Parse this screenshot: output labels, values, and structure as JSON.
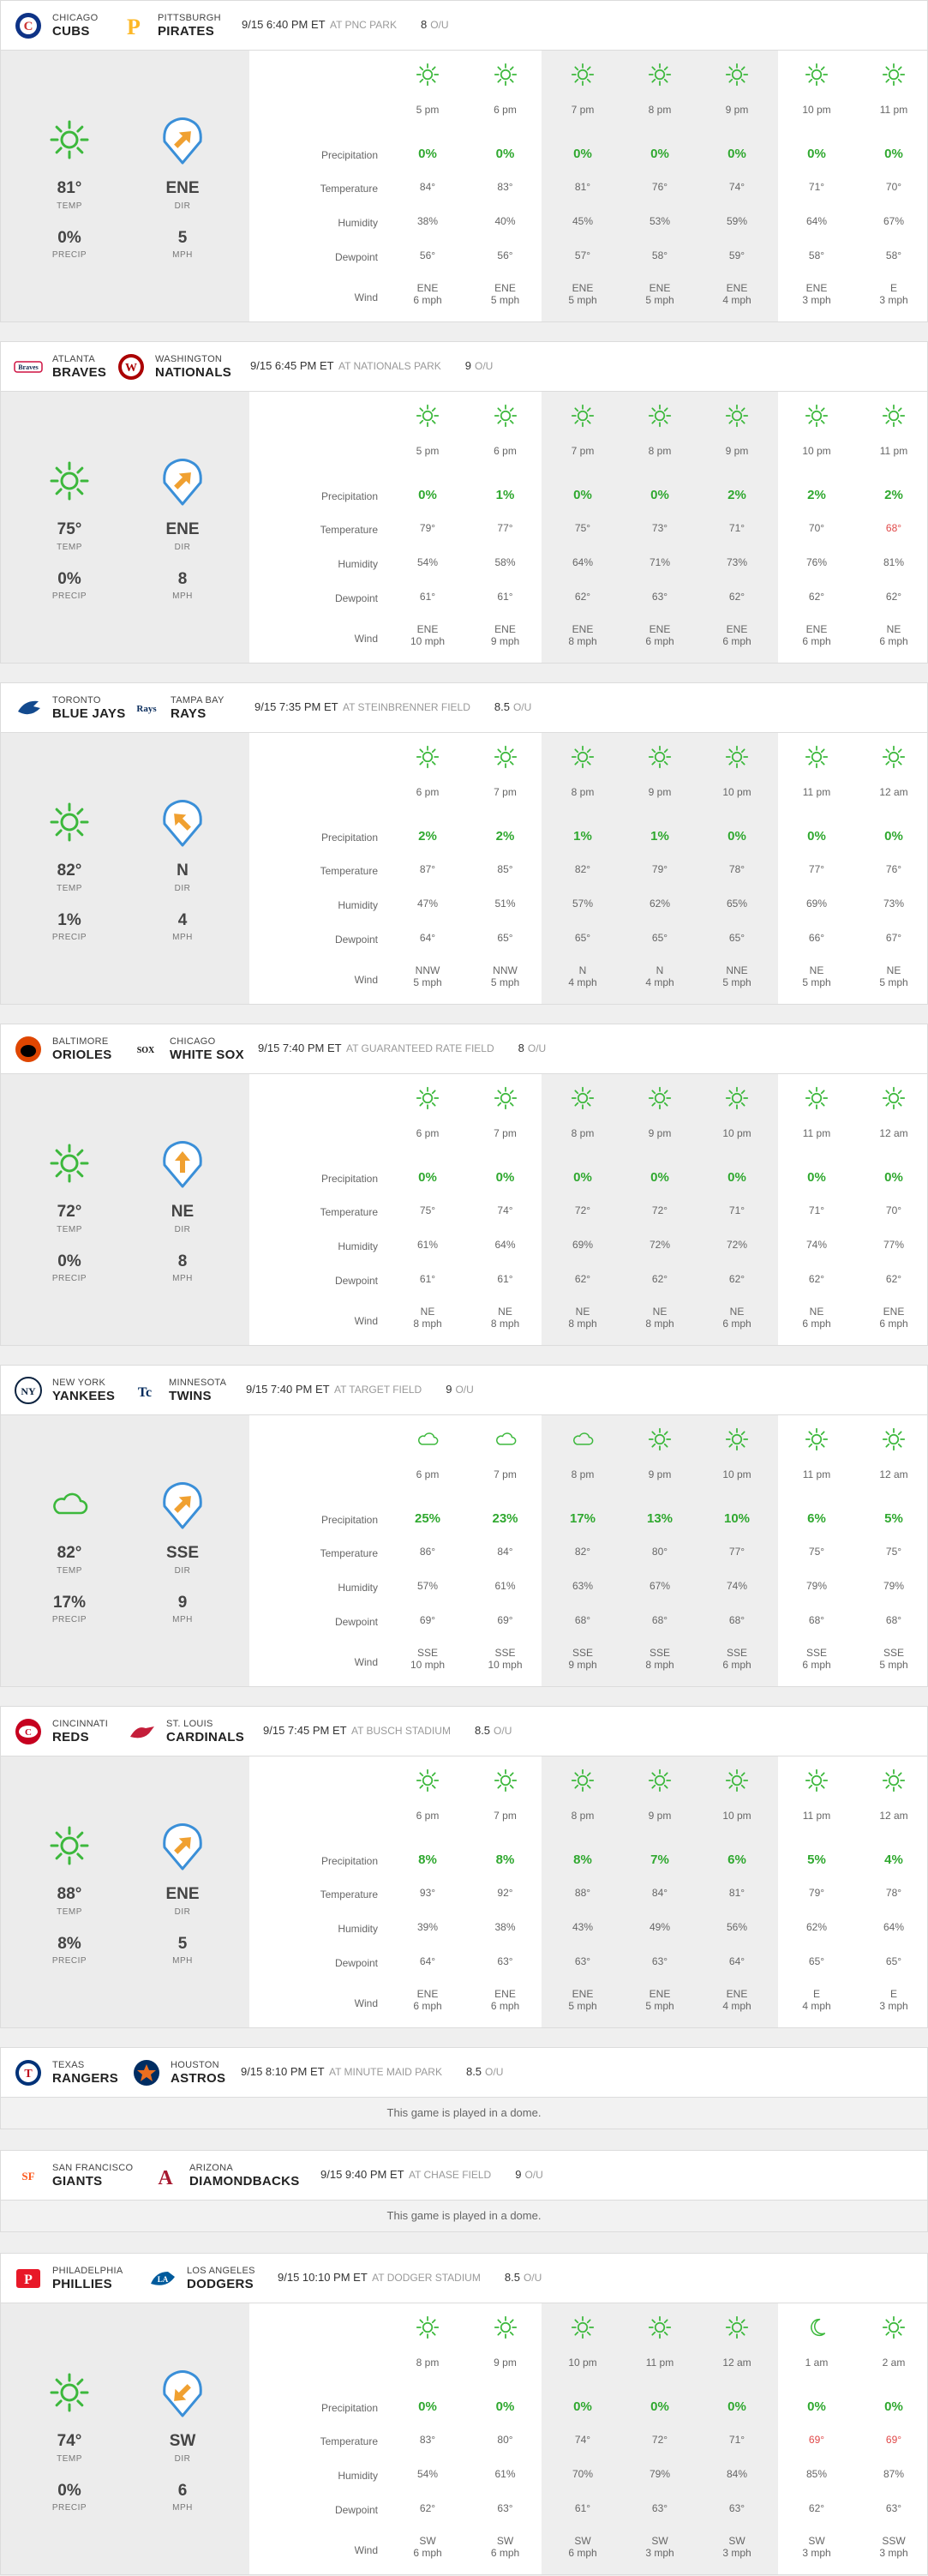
{
  "row_labels": {
    "precipitation": "Precipitation",
    "temperature": "Temperature",
    "humidity": "Humidity",
    "dewpoint": "Dewpoint",
    "wind": "Wind"
  },
  "summary_labels": {
    "temp": "TEMP",
    "dir": "DIR",
    "precip": "PRECIP",
    "mph": "MPH"
  },
  "ou_label": "O/U",
  "dome_message": "This game is played in a dome.",
  "colors": {
    "precip_green": "#2fa82f",
    "hot_red": "#e04848",
    "sun": "#3cb83c",
    "cloud": "#3cb83c",
    "arrow": "#f0a030",
    "field_outline": "#3a8fd8"
  },
  "games": [
    {
      "id": "cubs-pirates",
      "away": {
        "city": "CHICAGO",
        "nick": "CUBS",
        "logo": "cubs-logo"
      },
      "home": {
        "city": "PITTSBURGH",
        "nick": "PIRATES",
        "logo": "pirates-logo"
      },
      "datetime": "9/15 6:40 PM ET",
      "venue": "AT PNC PARK",
      "ou": "8",
      "summary": {
        "icon": "sun-icon",
        "temp": "81°",
        "dir": "ENE",
        "precip": "0%",
        "mph": "5",
        "arrow_angle": 225
      },
      "hours": [
        {
          "time": "5 pm",
          "icon": "sun-icon",
          "precip": "0%",
          "temp": "84°",
          "hum": "38%",
          "dew": "56°",
          "wind_dir": "ENE",
          "wind_speed": "6 mph"
        },
        {
          "time": "6 pm",
          "icon": "sun-icon",
          "precip": "0%",
          "temp": "83°",
          "hum": "40%",
          "dew": "56°",
          "wind_dir": "ENE",
          "wind_speed": "5 mph"
        },
        {
          "time": "7 pm",
          "icon": "sun-icon",
          "precip": "0%",
          "temp": "81°",
          "hum": "45%",
          "dew": "57°",
          "wind_dir": "ENE",
          "wind_speed": "5 mph"
        },
        {
          "time": "8 pm",
          "icon": "sun-icon",
          "precip": "0%",
          "temp": "76°",
          "hum": "53%",
          "dew": "58°",
          "wind_dir": "ENE",
          "wind_speed": "5 mph"
        },
        {
          "time": "9 pm",
          "icon": "sun-icon",
          "precip": "0%",
          "temp": "74°",
          "hum": "59%",
          "dew": "59°",
          "wind_dir": "ENE",
          "wind_speed": "4 mph"
        },
        {
          "time": "10 pm",
          "icon": "sun-icon",
          "precip": "0%",
          "temp": "71°",
          "hum": "64%",
          "dew": "58°",
          "wind_dir": "ENE",
          "wind_speed": "3 mph"
        },
        {
          "time": "11 pm",
          "icon": "sun-icon",
          "precip": "0%",
          "temp": "70°",
          "hum": "67%",
          "dew": "58°",
          "wind_dir": "E",
          "wind_speed": "3 mph"
        }
      ]
    },
    {
      "id": "braves-nationals",
      "away": {
        "city": "ATLANTA",
        "nick": "BRAVES",
        "logo": "braves-logo"
      },
      "home": {
        "city": "WASHINGTON",
        "nick": "NATIONALS",
        "logo": "nationals-logo"
      },
      "datetime": "9/15 6:45 PM ET",
      "venue": "AT NATIONALS PARK",
      "ou": "9",
      "summary": {
        "icon": "sun-icon",
        "temp": "75°",
        "dir": "ENE",
        "precip": "0%",
        "mph": "8",
        "arrow_angle": 225
      },
      "hours": [
        {
          "time": "5 pm",
          "icon": "sun-icon",
          "precip": "0%",
          "temp": "79°",
          "hum": "54%",
          "dew": "61°",
          "wind_dir": "ENE",
          "wind_speed": "10 mph"
        },
        {
          "time": "6 pm",
          "icon": "sun-icon",
          "precip": "1%",
          "temp": "77°",
          "hum": "58%",
          "dew": "61°",
          "wind_dir": "ENE",
          "wind_speed": "9 mph"
        },
        {
          "time": "7 pm",
          "icon": "sun-icon",
          "precip": "0%",
          "temp": "75°",
          "hum": "64%",
          "dew": "62°",
          "wind_dir": "ENE",
          "wind_speed": "8 mph"
        },
        {
          "time": "8 pm",
          "icon": "sun-icon",
          "precip": "0%",
          "temp": "73°",
          "hum": "71%",
          "dew": "63°",
          "wind_dir": "ENE",
          "wind_speed": "6 mph"
        },
        {
          "time": "9 pm",
          "icon": "sun-icon",
          "precip": "2%",
          "temp": "71°",
          "hum": "73%",
          "dew": "62°",
          "wind_dir": "ENE",
          "wind_speed": "6 mph"
        },
        {
          "time": "10 pm",
          "icon": "sun-icon",
          "precip": "2%",
          "temp": "70°",
          "hum": "76%",
          "dew": "62°",
          "wind_dir": "ENE",
          "wind_speed": "6 mph"
        },
        {
          "time": "11 pm",
          "icon": "sun-icon",
          "precip": "2%",
          "temp": "68°",
          "hot": true,
          "hum": "81%",
          "dew": "62°",
          "wind_dir": "NE",
          "wind_speed": "6 mph"
        }
      ]
    },
    {
      "id": "bluejays-rays",
      "away": {
        "city": "TORONTO",
        "nick": "BLUE JAYS",
        "logo": "blue-jays-logo"
      },
      "home": {
        "city": "TAMPA BAY",
        "nick": "RAYS",
        "logo": "rays-logo"
      },
      "datetime": "9/15 7:35 PM ET",
      "venue": "AT STEINBRENNER FIELD",
      "ou": "8.5",
      "summary": {
        "icon": "sun-icon",
        "temp": "82°",
        "dir": "N",
        "precip": "1%",
        "mph": "4",
        "arrow_angle": 135
      },
      "hours": [
        {
          "time": "6 pm",
          "icon": "sun-icon",
          "precip": "2%",
          "temp": "87°",
          "hum": "47%",
          "dew": "64°",
          "wind_dir": "NNW",
          "wind_speed": "5 mph"
        },
        {
          "time": "7 pm",
          "icon": "sun-icon",
          "precip": "2%",
          "temp": "85°",
          "hum": "51%",
          "dew": "65°",
          "wind_dir": "NNW",
          "wind_speed": "5 mph"
        },
        {
          "time": "8 pm",
          "icon": "sun-icon",
          "precip": "1%",
          "temp": "82°",
          "hum": "57%",
          "dew": "65°",
          "wind_dir": "N",
          "wind_speed": "4 mph"
        },
        {
          "time": "9 pm",
          "icon": "sun-icon",
          "precip": "1%",
          "temp": "79°",
          "hum": "62%",
          "dew": "65°",
          "wind_dir": "N",
          "wind_speed": "4 mph"
        },
        {
          "time": "10 pm",
          "icon": "sun-icon",
          "precip": "0%",
          "temp": "78°",
          "hum": "65%",
          "dew": "65°",
          "wind_dir": "NNE",
          "wind_speed": "5 mph"
        },
        {
          "time": "11 pm",
          "icon": "sun-icon",
          "precip": "0%",
          "temp": "77°",
          "hum": "69%",
          "dew": "66°",
          "wind_dir": "NE",
          "wind_speed": "5 mph"
        },
        {
          "time": "12 am",
          "icon": "sun-icon",
          "precip": "0%",
          "temp": "76°",
          "hum": "73%",
          "dew": "67°",
          "wind_dir": "NE",
          "wind_speed": "5 mph"
        }
      ]
    },
    {
      "id": "orioles-whitesox",
      "away": {
        "city": "BALTIMORE",
        "nick": "ORIOLES",
        "logo": "orioles-logo"
      },
      "home": {
        "city": "CHICAGO",
        "nick": "WHITE SOX",
        "logo": "white-sox-logo"
      },
      "datetime": "9/15 7:40 PM ET",
      "venue": "AT GUARANTEED RATE FIELD",
      "ou": "8",
      "summary": {
        "icon": "sun-icon",
        "temp": "72°",
        "dir": "NE",
        "precip": "0%",
        "mph": "8",
        "arrow_angle": 180
      },
      "hours": [
        {
          "time": "6 pm",
          "icon": "sun-icon",
          "precip": "0%",
          "temp": "75°",
          "hum": "61%",
          "dew": "61°",
          "wind_dir": "NE",
          "wind_speed": "8 mph"
        },
        {
          "time": "7 pm",
          "icon": "sun-icon",
          "precip": "0%",
          "temp": "74°",
          "hum": "64%",
          "dew": "61°",
          "wind_dir": "NE",
          "wind_speed": "8 mph"
        },
        {
          "time": "8 pm",
          "icon": "sun-icon",
          "precip": "0%",
          "temp": "72°",
          "hum": "69%",
          "dew": "62°",
          "wind_dir": "NE",
          "wind_speed": "8 mph"
        },
        {
          "time": "9 pm",
          "icon": "sun-icon",
          "precip": "0%",
          "temp": "72°",
          "hum": "72%",
          "dew": "62°",
          "wind_dir": "NE",
          "wind_speed": "8 mph"
        },
        {
          "time": "10 pm",
          "icon": "sun-icon",
          "precip": "0%",
          "temp": "71°",
          "hum": "72%",
          "dew": "62°",
          "wind_dir": "NE",
          "wind_speed": "6 mph"
        },
        {
          "time": "11 pm",
          "icon": "sun-icon",
          "precip": "0%",
          "temp": "71°",
          "hum": "74%",
          "dew": "62°",
          "wind_dir": "NE",
          "wind_speed": "6 mph"
        },
        {
          "time": "12 am",
          "icon": "sun-icon",
          "precip": "0%",
          "temp": "70°",
          "hum": "77%",
          "dew": "62°",
          "wind_dir": "ENE",
          "wind_speed": "6 mph"
        }
      ]
    },
    {
      "id": "yankees-twins",
      "away": {
        "city": "NEW YORK",
        "nick": "YANKEES",
        "logo": "yankees-logo"
      },
      "home": {
        "city": "MINNESOTA",
        "nick": "TWINS",
        "logo": "twins-logo"
      },
      "datetime": "9/15 7:40 PM ET",
      "venue": "AT TARGET FIELD",
      "ou": "9",
      "summary": {
        "icon": "cloud-icon",
        "temp": "82°",
        "dir": "SSE",
        "precip": "17%",
        "mph": "9",
        "arrow_angle": 225
      },
      "hours": [
        {
          "time": "6 pm",
          "icon": "cloud-icon",
          "precip": "25%",
          "temp": "86°",
          "hum": "57%",
          "dew": "69°",
          "wind_dir": "SSE",
          "wind_speed": "10 mph"
        },
        {
          "time": "7 pm",
          "icon": "cloud-icon",
          "precip": "23%",
          "temp": "84°",
          "hum": "61%",
          "dew": "69°",
          "wind_dir": "SSE",
          "wind_speed": "10 mph"
        },
        {
          "time": "8 pm",
          "icon": "cloud-icon",
          "precip": "17%",
          "temp": "82°",
          "hum": "63%",
          "dew": "68°",
          "wind_dir": "SSE",
          "wind_speed": "9 mph"
        },
        {
          "time": "9 pm",
          "icon": "sun-icon",
          "precip": "13%",
          "temp": "80°",
          "hum": "67%",
          "dew": "68°",
          "wind_dir": "SSE",
          "wind_speed": "8 mph"
        },
        {
          "time": "10 pm",
          "icon": "sun-icon",
          "precip": "10%",
          "temp": "77°",
          "hum": "74%",
          "dew": "68°",
          "wind_dir": "SSE",
          "wind_speed": "6 mph"
        },
        {
          "time": "11 pm",
          "icon": "sun-icon",
          "precip": "6%",
          "temp": "75°",
          "hum": "79%",
          "dew": "68°",
          "wind_dir": "SSE",
          "wind_speed": "6 mph"
        },
        {
          "time": "12 am",
          "icon": "sun-icon",
          "precip": "5%",
          "temp": "75°",
          "hum": "79%",
          "dew": "68°",
          "wind_dir": "SSE",
          "wind_speed": "5 mph"
        }
      ]
    },
    {
      "id": "reds-cardinals",
      "away": {
        "city": "CINCINNATI",
        "nick": "REDS",
        "logo": "reds-logo"
      },
      "home": {
        "city": "ST. LOUIS",
        "nick": "CARDINALS",
        "logo": "cardinals-logo"
      },
      "datetime": "9/15 7:45 PM ET",
      "venue": "AT BUSCH STADIUM",
      "ou": "8.5",
      "summary": {
        "icon": "sun-icon",
        "temp": "88°",
        "dir": "ENE",
        "precip": "8%",
        "mph": "5",
        "arrow_angle": 225
      },
      "hours": [
        {
          "time": "6 pm",
          "icon": "sun-icon",
          "precip": "8%",
          "temp": "93°",
          "hum": "39%",
          "dew": "64°",
          "wind_dir": "ENE",
          "wind_speed": "6 mph"
        },
        {
          "time": "7 pm",
          "icon": "sun-icon",
          "precip": "8%",
          "temp": "92°",
          "hum": "38%",
          "dew": "63°",
          "wind_dir": "ENE",
          "wind_speed": "6 mph"
        },
        {
          "time": "8 pm",
          "icon": "sun-icon",
          "precip": "8%",
          "temp": "88°",
          "hum": "43%",
          "dew": "63°",
          "wind_dir": "ENE",
          "wind_speed": "5 mph"
        },
        {
          "time": "9 pm",
          "icon": "sun-icon",
          "precip": "7%",
          "temp": "84°",
          "hum": "49%",
          "dew": "63°",
          "wind_dir": "ENE",
          "wind_speed": "5 mph"
        },
        {
          "time": "10 pm",
          "icon": "sun-icon",
          "precip": "6%",
          "temp": "81°",
          "hum": "56%",
          "dew": "64°",
          "wind_dir": "ENE",
          "wind_speed": "4 mph"
        },
        {
          "time": "11 pm",
          "icon": "sun-icon",
          "precip": "5%",
          "temp": "79°",
          "hum": "62%",
          "dew": "65°",
          "wind_dir": "E",
          "wind_speed": "4 mph"
        },
        {
          "time": "12 am",
          "icon": "sun-icon",
          "precip": "4%",
          "temp": "78°",
          "hum": "64%",
          "dew": "65°",
          "wind_dir": "E",
          "wind_speed": "3 mph"
        }
      ]
    },
    {
      "id": "rangers-astros",
      "dome": true,
      "away": {
        "city": "TEXAS",
        "nick": "RANGERS",
        "logo": "rangers-logo"
      },
      "home": {
        "city": "HOUSTON",
        "nick": "ASTROS",
        "logo": "astros-logo"
      },
      "datetime": "9/15 8:10 PM ET",
      "venue": "AT MINUTE MAID PARK",
      "ou": "8.5"
    },
    {
      "id": "giants-diamondbacks",
      "dome": true,
      "away": {
        "city": "SAN FRANCISCO",
        "nick": "GIANTS",
        "logo": "giants-logo"
      },
      "home": {
        "city": "ARIZONA",
        "nick": "DIAMONDBACKS",
        "logo": "diamondbacks-logo"
      },
      "datetime": "9/15 9:40 PM ET",
      "venue": "AT CHASE FIELD",
      "ou": "9"
    },
    {
      "id": "phillies-dodgers",
      "away": {
        "city": "PHILADELPHIA",
        "nick": "PHILLIES",
        "logo": "phillies-logo"
      },
      "home": {
        "city": "LOS ANGELES",
        "nick": "DODGERS",
        "logo": "dodgers-logo"
      },
      "datetime": "9/15 10:10 PM ET",
      "venue": "AT DODGER STADIUM",
      "ou": "8.5",
      "summary": {
        "icon": "sun-icon",
        "temp": "74°",
        "dir": "SW",
        "precip": "0%",
        "mph": "6",
        "arrow_angle": 45
      },
      "hours": [
        {
          "time": "8 pm",
          "icon": "sun-icon",
          "precip": "0%",
          "temp": "83°",
          "hum": "54%",
          "dew": "62°",
          "wind_dir": "SW",
          "wind_speed": "6 mph"
        },
        {
          "time": "9 pm",
          "icon": "sun-icon",
          "precip": "0%",
          "temp": "80°",
          "hum": "61%",
          "dew": "63°",
          "wind_dir": "SW",
          "wind_speed": "6 mph"
        },
        {
          "time": "10 pm",
          "icon": "sun-icon",
          "precip": "0%",
          "temp": "74°",
          "hum": "70%",
          "dew": "61°",
          "wind_dir": "SW",
          "wind_speed": "6 mph"
        },
        {
          "time": "11 pm",
          "icon": "sun-icon",
          "precip": "0%",
          "temp": "72°",
          "hum": "79%",
          "dew": "63°",
          "wind_dir": "SW",
          "wind_speed": "3 mph"
        },
        {
          "time": "12 am",
          "icon": "sun-icon",
          "precip": "0%",
          "temp": "71°",
          "hum": "84%",
          "dew": "63°",
          "wind_dir": "SW",
          "wind_speed": "3 mph"
        },
        {
          "time": "1 am",
          "icon": "moon-icon",
          "precip": "0%",
          "temp": "69°",
          "hot": true,
          "hum": "85%",
          "dew": "62°",
          "wind_dir": "SW",
          "wind_speed": "3 mph"
        },
        {
          "time": "2 am",
          "icon": "sun-icon",
          "precip": "0%",
          "temp": "69°",
          "hot": true,
          "hum": "87%",
          "dew": "63°",
          "wind_dir": "SSW",
          "wind_speed": "3 mph"
        }
      ]
    }
  ]
}
